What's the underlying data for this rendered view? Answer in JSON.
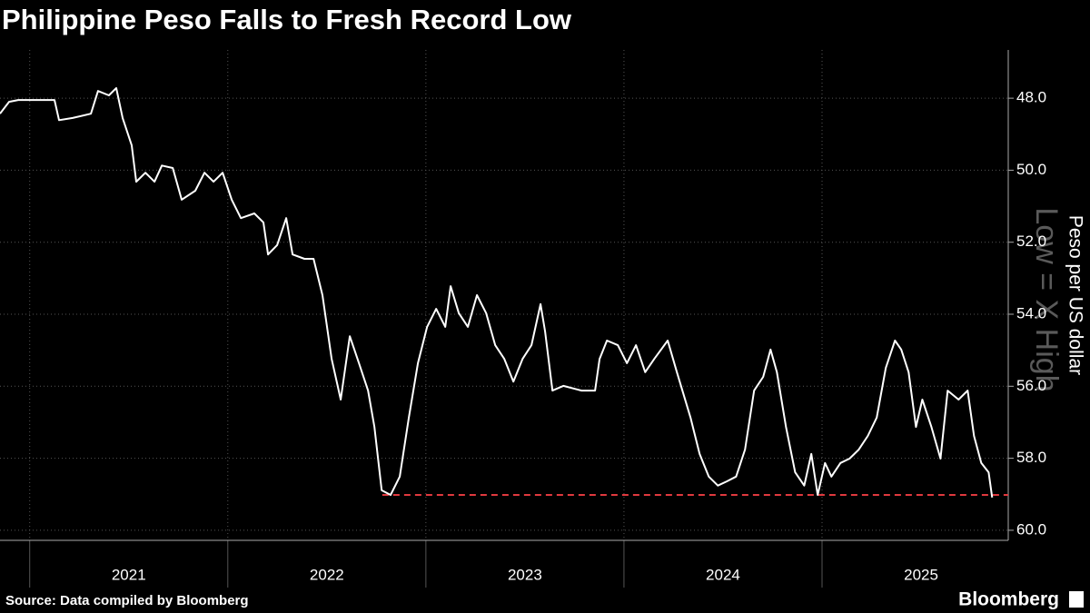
{
  "chart_data": {
    "type": "line",
    "title": "Philippine Peso Falls to Fresh Record Low",
    "y_label": "Peso per US dollar",
    "annotation": "Low = X High",
    "source": "Source: Data compiled by Bloomberg",
    "brand": "Bloomberg",
    "color": "#ffffff",
    "grid": true,
    "y_inverted": true,
    "xlim": [
      2020.85,
      2025.94
    ],
    "xticks": [
      2021,
      2022,
      2023,
      2024,
      2025
    ],
    "ylim": [
      46.66,
      60.28
    ],
    "yticks": [
      {
        "value": 48,
        "label": "48.0"
      },
      {
        "value": 50,
        "label": "50.0"
      },
      {
        "value": 52,
        "label": "52.0"
      },
      {
        "value": 54,
        "label": "54.0"
      },
      {
        "value": 56,
        "label": "56.0"
      },
      {
        "value": 58,
        "label": "58.0"
      },
      {
        "value": 60,
        "label": "60.0"
      }
    ],
    "reference_line": {
      "value": 59.02,
      "x_start": 2022.78,
      "color": "#e0393e"
    },
    "x": [
      2020.85,
      2020.896,
      2020.942,
      2021.125,
      2021.148,
      2021.217,
      2021.309,
      2021.345,
      2021.4,
      2021.437,
      2021.469,
      2021.515,
      2021.538,
      2021.584,
      2021.63,
      2021.667,
      2021.722,
      2021.767,
      2021.836,
      2021.882,
      2021.928,
      2021.974,
      2022.02,
      2022.066,
      2022.134,
      2022.18,
      2022.203,
      2022.249,
      2022.295,
      2022.327,
      2022.387,
      2022.433,
      2022.478,
      2022.524,
      2022.57,
      2022.616,
      2022.662,
      2022.708,
      2022.74,
      2022.777,
      2022.822,
      2022.868,
      2022.914,
      2022.96,
      2023.006,
      2023.052,
      2023.098,
      2023.125,
      2023.166,
      2023.212,
      2023.258,
      2023.304,
      2023.35,
      2023.396,
      2023.442,
      2023.488,
      2023.533,
      2023.579,
      2023.602,
      2023.639,
      2023.694,
      2023.786,
      2023.854,
      2023.877,
      2023.914,
      2023.969,
      2024.015,
      2024.061,
      2024.107,
      2024.153,
      2024.221,
      2024.267,
      2024.336,
      2024.382,
      2024.428,
      2024.474,
      2024.52,
      2024.566,
      2024.611,
      2024.657,
      2024.703,
      2024.74,
      2024.772,
      2024.818,
      2024.864,
      2024.91,
      2024.946,
      2024.978,
      2025.015,
      2025.047,
      2025.093,
      2025.139,
      2025.185,
      2025.231,
      2025.276,
      2025.322,
      2025.368,
      2025.4,
      2025.437,
      2025.474,
      2025.506,
      2025.552,
      2025.598,
      2025.634,
      2025.689,
      2025.735,
      2025.767,
      2025.804,
      2025.841,
      2025.859
    ],
    "values": [
      48.43,
      48.1,
      48.05,
      48.05,
      48.61,
      48.55,
      48.43,
      47.8,
      47.92,
      47.72,
      48.55,
      49.31,
      50.32,
      50.07,
      50.32,
      49.87,
      49.94,
      50.82,
      50.57,
      50.07,
      50.32,
      50.07,
      50.82,
      51.33,
      51.2,
      51.45,
      52.34,
      52.08,
      51.33,
      52.34,
      52.46,
      52.46,
      53.47,
      55.24,
      56.37,
      54.61,
      55.36,
      56.12,
      57.13,
      58.89,
      59.02,
      58.51,
      56.87,
      55.36,
      54.35,
      53.85,
      54.35,
      53.22,
      53.97,
      54.35,
      53.47,
      53.97,
      54.86,
      55.24,
      55.87,
      55.24,
      54.86,
      53.72,
      54.48,
      56.12,
      55.99,
      56.12,
      56.12,
      55.24,
      54.73,
      54.86,
      55.36,
      54.86,
      55.61,
      55.24,
      54.73,
      55.61,
      56.87,
      57.88,
      58.51,
      58.76,
      58.64,
      58.51,
      57.76,
      56.12,
      55.74,
      54.98,
      55.61,
      57.13,
      58.39,
      58.76,
      57.88,
      59.02,
      58.13,
      58.51,
      58.13,
      58.01,
      57.76,
      57.38,
      56.87,
      55.49,
      54.73,
      54.98,
      55.61,
      57.13,
      56.37,
      57.13,
      58.01,
      56.12,
      56.37,
      56.12,
      57.38,
      58.13,
      58.39,
      59.09
    ]
  }
}
